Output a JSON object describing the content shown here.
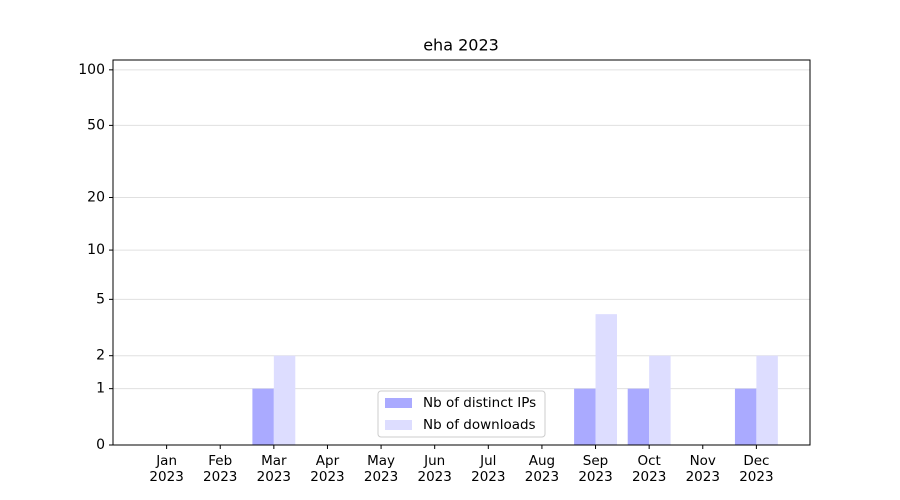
{
  "chart_data": {
    "type": "bar",
    "title": "eha 2023",
    "categories": [
      "Jan\n2023",
      "Feb\n2023",
      "Mar\n2023",
      "Apr\n2023",
      "May\n2023",
      "Jun\n2023",
      "Jul\n2023",
      "Aug\n2023",
      "Sep\n2023",
      "Oct\n2023",
      "Nov\n2023",
      "Dec\n2023"
    ],
    "series": [
      {
        "name": "Nb of distinct IPs",
        "color": "#aaaaff",
        "values": [
          0,
          0,
          1,
          0,
          0,
          0,
          0,
          0,
          1,
          1,
          0,
          1
        ]
      },
      {
        "name": "Nb of downloads",
        "color": "#ddddff",
        "values": [
          0,
          0,
          2,
          0,
          0,
          0,
          0,
          0,
          4,
          2,
          0,
          2
        ]
      }
    ],
    "yscale": "log1p",
    "ylim": [
      0,
      113
    ],
    "yticks": [
      0,
      1,
      2,
      5,
      10,
      20,
      50,
      100
    ],
    "grid": true,
    "legend": "lower center"
  }
}
